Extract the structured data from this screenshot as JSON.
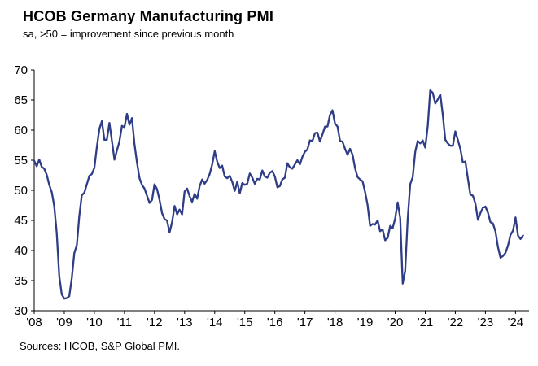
{
  "chart_data": {
    "type": "line",
    "title": "HCOB Germany Manufacturing PMI",
    "subtitle": "sa, >50 = improvement since previous month",
    "source": "Sources: HCOB, S&P Global PMI.",
    "xlabel": "",
    "ylabel": "",
    "ylim": [
      30,
      70
    ],
    "ytick_step": 5,
    "x_start_year": 2008,
    "x_end": "2024-04",
    "frequency": "monthly",
    "grid": false,
    "legend": false,
    "line_color": "#2e3d85",
    "axis_color": "#000000",
    "x_labels": [
      "'08",
      "'09",
      "'10",
      "'11",
      "'12",
      "'13",
      "'14",
      "'15",
      "'16",
      "'17",
      "'18",
      "'19",
      "'20",
      "'21",
      "'22",
      "'23",
      "'24"
    ],
    "series": [
      {
        "name": "HCOB Germany Manufacturing PMI (sa)",
        "start": "2008-01",
        "values": [
          54.9,
          54.0,
          55.1,
          53.9,
          53.6,
          52.6,
          50.9,
          49.7,
          47.4,
          42.9,
          35.7,
          32.7,
          32.0,
          32.1,
          32.4,
          35.4,
          39.6,
          40.9,
          45.7,
          49.2,
          49.6,
          51.0,
          52.4,
          52.7,
          53.7,
          57.2,
          60.2,
          61.5,
          58.4,
          58.4,
          61.2,
          58.2,
          55.1,
          56.6,
          58.1,
          60.7,
          60.5,
          62.7,
          60.9,
          62.0,
          57.7,
          54.6,
          52.0,
          50.9,
          50.3,
          49.1,
          47.9,
          48.4,
          51.0,
          50.2,
          48.4,
          46.2,
          45.2,
          45.0,
          43.0,
          44.7,
          47.4,
          46.0,
          46.8,
          46.0,
          49.8,
          50.3,
          49.0,
          48.1,
          49.4,
          48.6,
          50.7,
          51.8,
          51.1,
          51.7,
          52.7,
          54.3,
          56.5,
          54.8,
          53.7,
          54.1,
          52.3,
          52.0,
          52.4,
          51.4,
          49.9,
          51.4,
          49.5,
          51.2,
          50.9,
          51.1,
          52.8,
          52.1,
          51.1,
          51.9,
          51.8,
          53.3,
          52.3,
          52.1,
          52.9,
          53.2,
          52.3,
          50.5,
          50.7,
          51.8,
          52.1,
          54.5,
          53.8,
          53.6,
          54.3,
          55.0,
          54.3,
          55.6,
          56.4,
          56.8,
          58.3,
          58.2,
          59.5,
          59.6,
          58.1,
          59.3,
          60.6,
          60.6,
          62.5,
          63.3,
          61.1,
          60.6,
          58.2,
          58.1,
          56.9,
          55.9,
          56.9,
          55.9,
          53.7,
          52.2,
          51.8,
          51.5,
          49.7,
          47.6,
          44.1,
          44.4,
          44.3,
          45.0,
          43.2,
          43.5,
          41.7,
          42.1,
          44.1,
          43.7,
          45.3,
          48.0,
          45.4,
          34.5,
          36.6,
          45.2,
          51.0,
          52.2,
          56.4,
          58.2,
          57.8,
          58.3,
          57.1,
          60.7,
          66.6,
          66.2,
          64.4,
          65.1,
          65.9,
          62.6,
          58.4,
          57.8,
          57.4,
          57.4,
          59.8,
          58.4,
          56.9,
          54.6,
          54.8,
          52.0,
          49.3,
          49.1,
          47.8,
          45.1,
          46.2,
          47.1,
          47.3,
          46.3,
          44.7,
          44.5,
          43.2,
          40.6,
          38.8,
          39.1,
          39.6,
          40.8,
          42.6,
          43.3,
          45.5,
          42.5,
          41.9,
          42.5
        ]
      }
    ]
  }
}
